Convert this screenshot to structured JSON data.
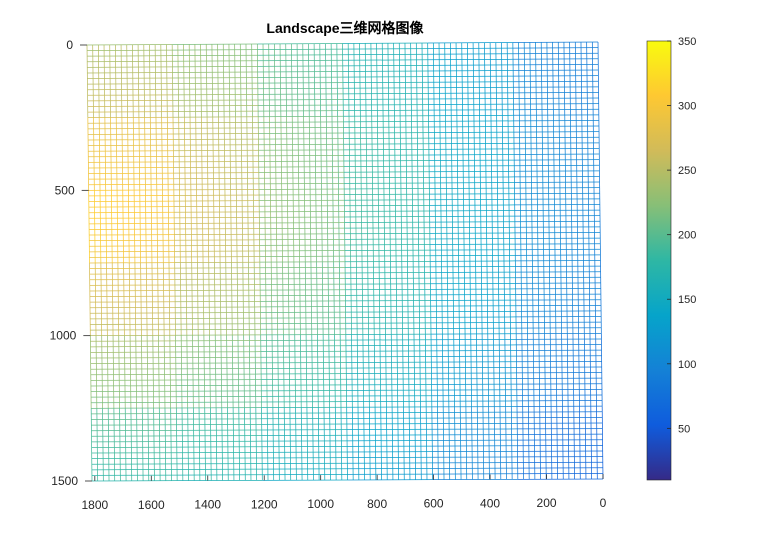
{
  "chart_data": {
    "type": "mesh",
    "title": "Landscape三维网格图像",
    "xlabel": "",
    "ylabel": "",
    "x_ticks": [
      1800,
      1600,
      1400,
      1200,
      1000,
      800,
      600,
      400,
      200,
      0
    ],
    "y_ticks": [
      0,
      500,
      1000,
      1500
    ],
    "x_range": [
      1810,
      0
    ],
    "y_range": [
      0,
      1500
    ],
    "x_reversed": true,
    "y_reversed": true,
    "colorbar": {
      "ticks": [
        50,
        100,
        150,
        200,
        250,
        300,
        350
      ],
      "range": [
        10,
        350
      ],
      "colormap": "parula",
      "low_color": "#352a87",
      "high_color": "#f9fb0e"
    },
    "surface": {
      "peak_x": 1780,
      "peak_y": 550,
      "peak_value": 330,
      "min_value": 40,
      "description_hidden": false
    },
    "grid": false
  }
}
